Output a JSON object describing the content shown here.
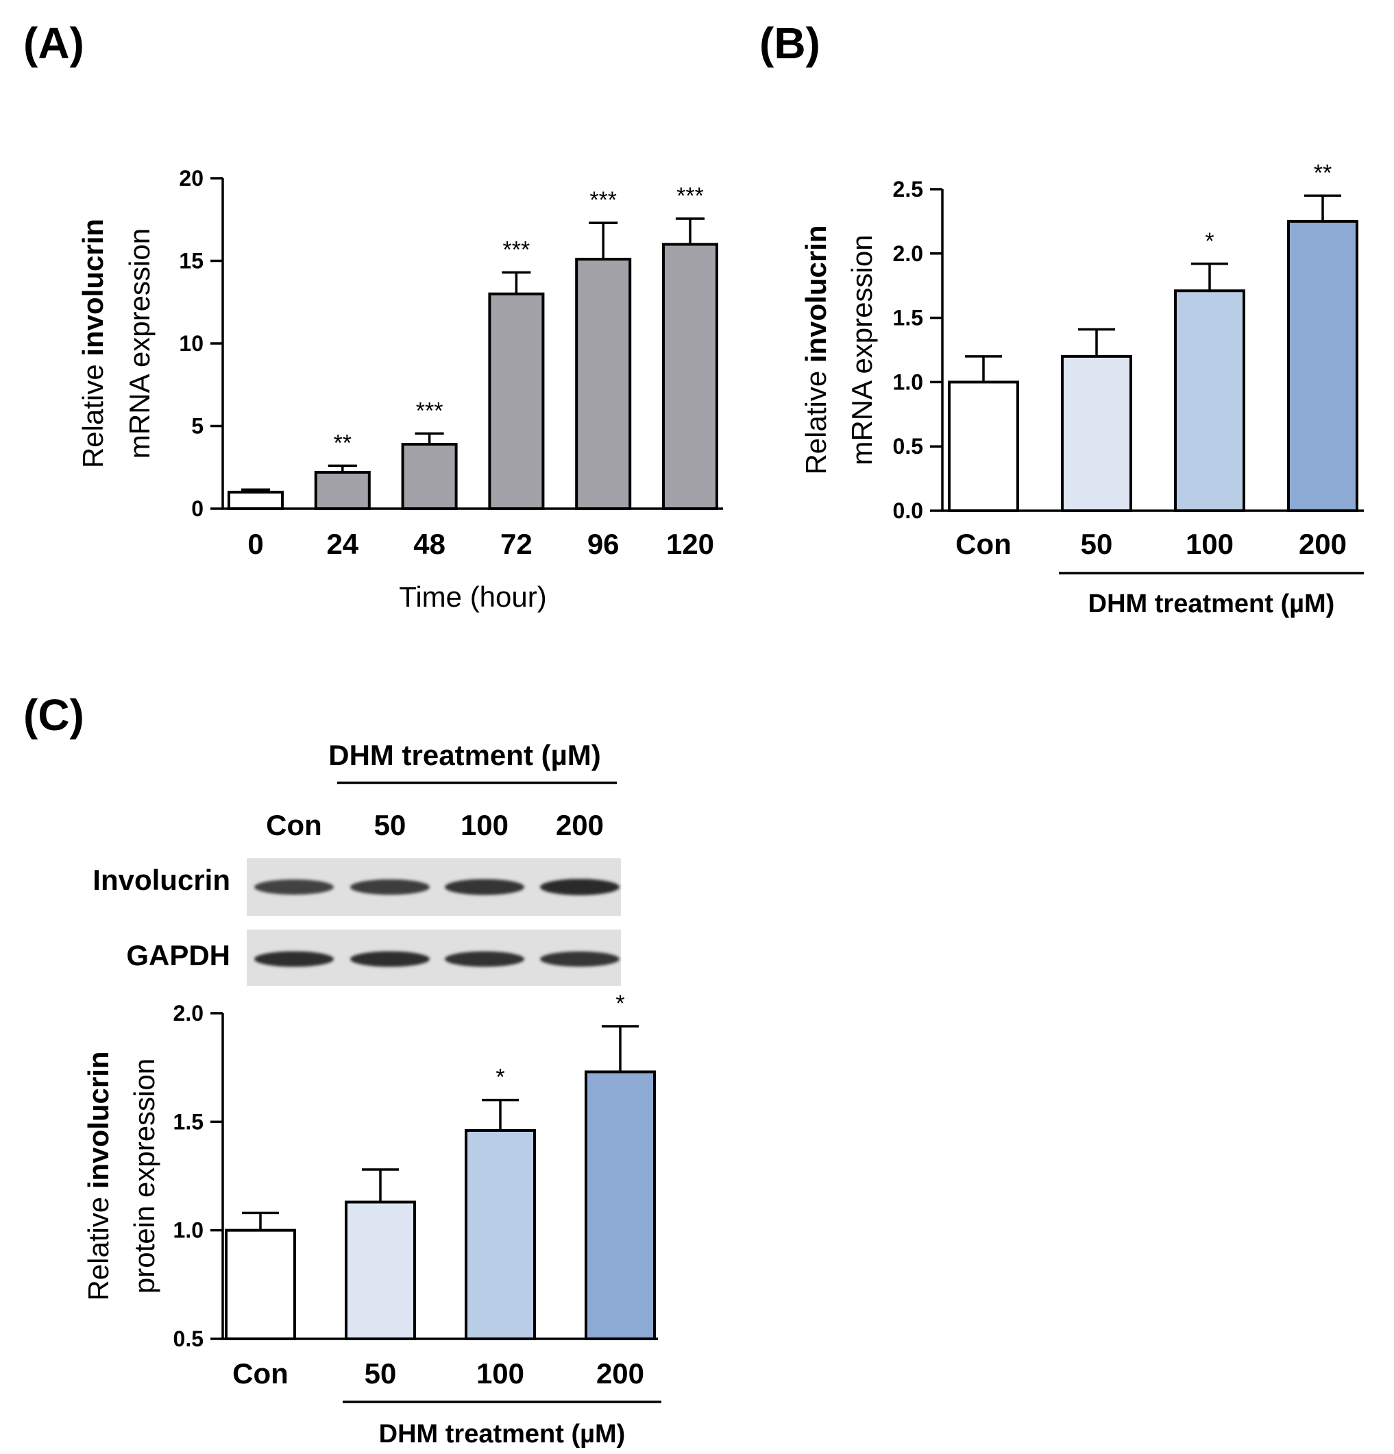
{
  "panels": {
    "a": {
      "letter": "(A)"
    },
    "b": {
      "letter": "(B)"
    },
    "c": {
      "letter": "(C)"
    }
  },
  "blot": {
    "group_label": "DHM treatment (µM)",
    "lanes": [
      "Con",
      "50",
      "100",
      "200"
    ],
    "rows": [
      {
        "name": "Involucrin",
        "band_intensity": [
          0.78,
          0.82,
          0.9,
          0.98
        ]
      },
      {
        "name": "GAPDH",
        "band_intensity": [
          0.95,
          0.95,
          0.93,
          0.9
        ]
      }
    ]
  },
  "chart_data": [
    {
      "id": "A",
      "type": "bar",
      "categories": [
        "0",
        "24",
        "48",
        "72",
        "96",
        "120"
      ],
      "values": [
        1.0,
        2.2,
        3.9,
        13.0,
        15.1,
        16.0
      ],
      "errors": [
        0.15,
        0.4,
        0.65,
        1.3,
        2.2,
        1.55
      ],
      "significance": [
        "",
        "**",
        "***",
        "***",
        "***",
        "***"
      ],
      "bar_colors": [
        "#ffffff",
        "#a2a2a8",
        "#a2a2a8",
        "#a2a2a8",
        "#a2a2a8",
        "#a2a2a8"
      ],
      "ylabel_prefix": "Relative ",
      "ylabel_bold": "involucrin",
      "ylabel_line2": "mRNA expression",
      "xlabel": "Time (hour)",
      "group_label": "",
      "ylim": [
        0,
        20
      ],
      "yticks": [
        "0",
        "5",
        "10",
        "15",
        "20"
      ],
      "grid": false
    },
    {
      "id": "B",
      "type": "bar",
      "categories": [
        "Con",
        "50",
        "100",
        "200"
      ],
      "values": [
        1.0,
        1.2,
        1.71,
        2.25
      ],
      "errors": [
        0.2,
        0.21,
        0.21,
        0.2
      ],
      "significance": [
        "",
        "",
        "*",
        "**"
      ],
      "bar_colors": [
        "#ffffff",
        "#dde6f2",
        "#b9cde6",
        "#8caad4"
      ],
      "ylabel_prefix": "Relative ",
      "ylabel_bold": "involucrin",
      "ylabel_line2": "mRNA expression",
      "xlabel": "",
      "group_label": "DHM treatment (µM)",
      "ylim": [
        0,
        2.5
      ],
      "yticks": [
        "0.0",
        "0.5",
        "1.0",
        "1.5",
        "2.0",
        "2.5"
      ],
      "grid": false
    },
    {
      "id": "C",
      "type": "bar",
      "categories": [
        "Con",
        "50",
        "100",
        "200"
      ],
      "values": [
        1.0,
        1.13,
        1.46,
        1.73
      ],
      "errors": [
        0.08,
        0.15,
        0.14,
        0.21
      ],
      "significance": [
        "",
        "",
        "*",
        "*"
      ],
      "bar_colors": [
        "#ffffff",
        "#dde6f2",
        "#b9cde6",
        "#8caad4"
      ],
      "ylabel_prefix": "Relative ",
      "ylabel_bold": "involucrin",
      "ylabel_line2": "protein expression",
      "xlabel": "",
      "group_label": "DHM treatment (µM)",
      "ylim": [
        0.5,
        2.0
      ],
      "yticks": [
        "0.5",
        "1.0",
        "1.5",
        "2.0"
      ],
      "grid": false
    }
  ]
}
